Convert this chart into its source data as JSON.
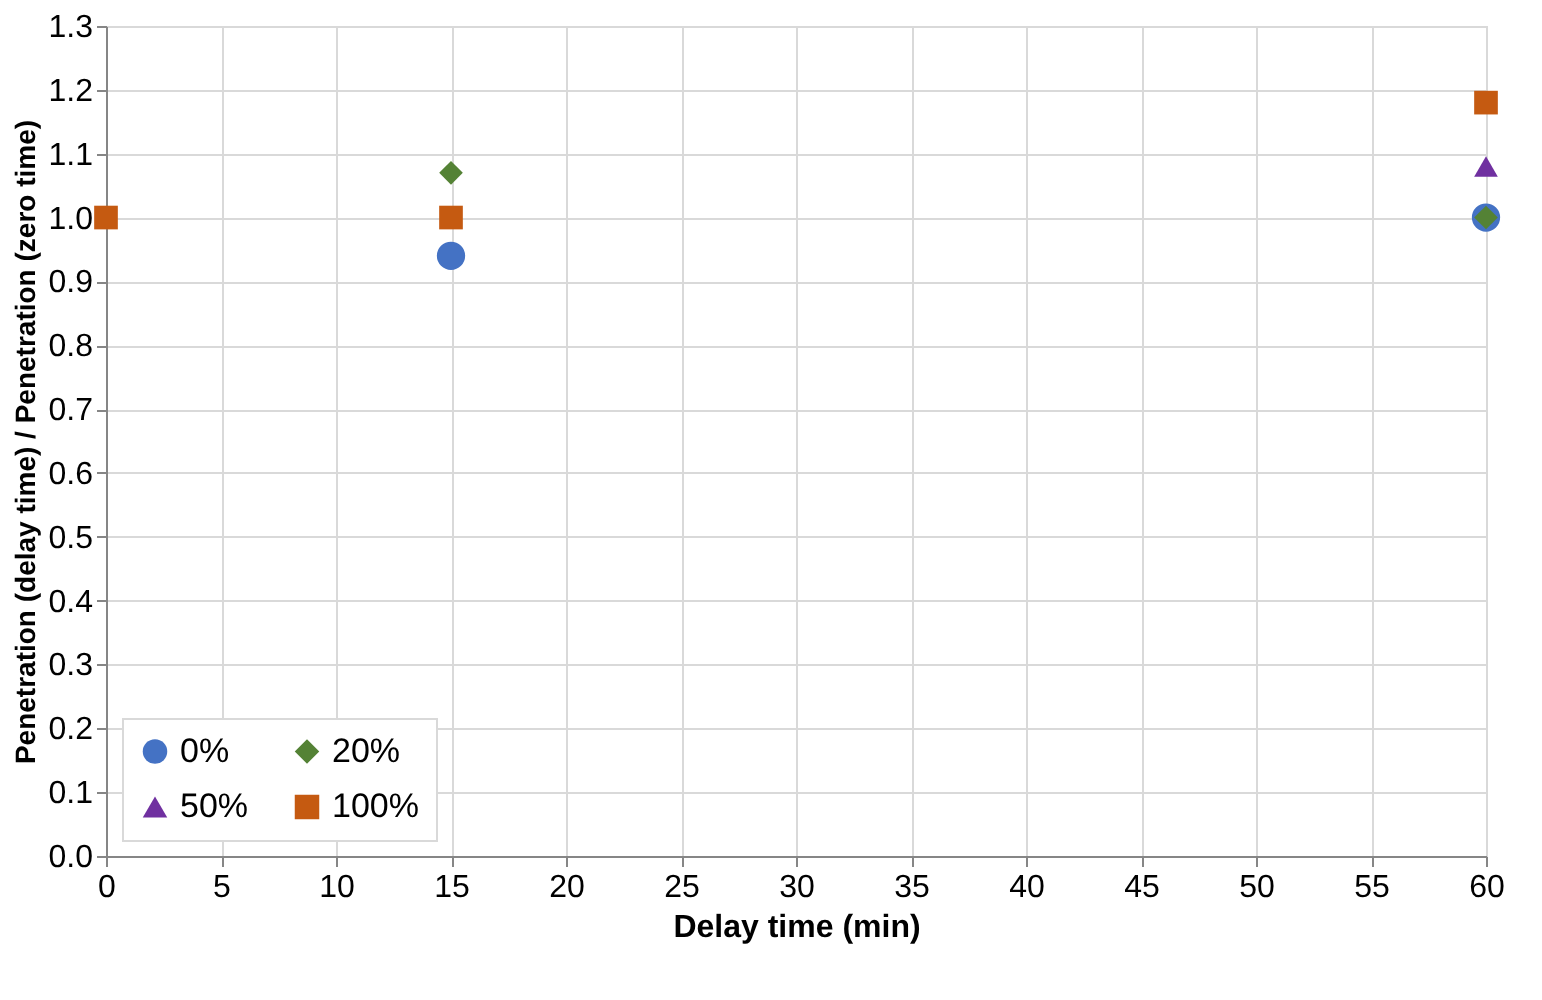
{
  "chart_data": {
    "type": "scatter",
    "xlabel": "Delay time (min)",
    "ylabel": "Penetration (delay time) / Penetration (zero time)",
    "x": [
      0,
      15,
      60
    ],
    "series": [
      {
        "name": "0%",
        "color": "#4472c4",
        "marker": "circle",
        "values": [
          null,
          0.94,
          1.0
        ]
      },
      {
        "name": "20%",
        "color": "#548235",
        "marker": "diamond",
        "values": [
          null,
          1.07,
          1.0
        ]
      },
      {
        "name": "50%",
        "color": "#7030a0",
        "marker": "triangle",
        "values": [
          null,
          null,
          1.08
        ]
      },
      {
        "name": "100%",
        "color": "#c55a11",
        "marker": "square",
        "values": [
          1.0,
          1.0,
          1.18
        ]
      }
    ],
    "xlim": [
      0,
      60
    ],
    "xticks": [
      0,
      5,
      10,
      15,
      20,
      25,
      30,
      35,
      40,
      45,
      50,
      55,
      60
    ],
    "ylim": [
      0,
      1.3
    ],
    "yticks": [
      {
        "value": 0,
        "label": "0.0"
      },
      0.1,
      0.2,
      0.3,
      0.4,
      0.5,
      0.6,
      0.7,
      0.8,
      0.9,
      {
        "value": 1,
        "label": "1.0"
      },
      1.1,
      1.2,
      1.3
    ],
    "grid": true,
    "legend": "bottom left"
  }
}
